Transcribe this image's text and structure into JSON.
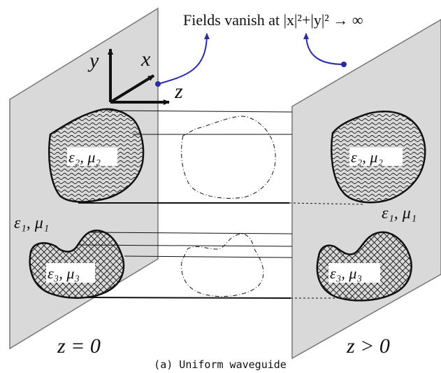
{
  "annotation": {
    "boundary_condition_text": "Fields vanish at |x|²+|y|² → ∞"
  },
  "axes": {
    "x_label": "x",
    "y_label": "y",
    "z_label": "z"
  },
  "materials": {
    "background": {
      "eps": "ε₁",
      "mu": "μ₁",
      "text": "ε₁, μ₁"
    },
    "region2": {
      "eps": "ε₂",
      "mu": "μ₂",
      "text": "ε₂, μ₂"
    },
    "region3": {
      "eps": "ε₃",
      "mu": "μ₃",
      "text": "ε₃, μ₃"
    }
  },
  "planes": {
    "left_label": "z = 0",
    "right_label": "z > 0"
  },
  "caption": "(a) Uniform waveguide",
  "colors": {
    "plane_fill": "#d9d9d9",
    "arrow": "#2b2ba8",
    "ink": "#111111"
  }
}
